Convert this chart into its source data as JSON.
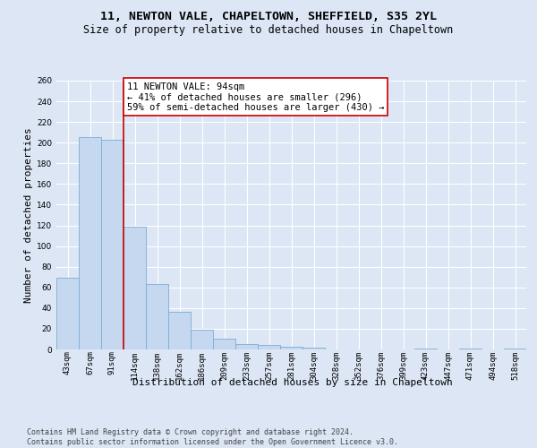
{
  "title1": "11, NEWTON VALE, CHAPELTOWN, SHEFFIELD, S35 2YL",
  "title2": "Size of property relative to detached houses in Chapeltown",
  "xlabel": "Distribution of detached houses by size in Chapeltown",
  "ylabel": "Number of detached properties",
  "categories": [
    "43sqm",
    "67sqm",
    "91sqm",
    "114sqm",
    "138sqm",
    "162sqm",
    "186sqm",
    "209sqm",
    "233sqm",
    "257sqm",
    "281sqm",
    "304sqm",
    "328sqm",
    "352sqm",
    "376sqm",
    "399sqm",
    "423sqm",
    "447sqm",
    "471sqm",
    "494sqm",
    "518sqm"
  ],
  "values": [
    69,
    205,
    203,
    119,
    63,
    36,
    19,
    10,
    5,
    4,
    3,
    2,
    0,
    0,
    0,
    0,
    1,
    0,
    1,
    0,
    1
  ],
  "bar_color": "#c5d8f0",
  "bar_edge_color": "#7aadd4",
  "vline_position": 2.5,
  "vline_color": "#cc0000",
  "annotation_text": "11 NEWTON VALE: 94sqm\n← 41% of detached houses are smaller (296)\n59% of semi-detached houses are larger (430) →",
  "annotation_box_facecolor": "white",
  "annotation_box_edgecolor": "#cc0000",
  "footer_line1": "Contains HM Land Registry data © Crown copyright and database right 2024.",
  "footer_line2": "Contains public sector information licensed under the Open Government Licence v3.0.",
  "ylim_max": 260,
  "ytick_step": 20,
  "bg_color": "#dce6f5",
  "grid_color": "#ffffff",
  "title1_fontsize": 9.5,
  "title2_fontsize": 8.5,
  "tick_fontsize": 6.5,
  "ylabel_fontsize": 8,
  "xlabel_fontsize": 8,
  "annot_fontsize": 7.5,
  "footer_fontsize": 6
}
